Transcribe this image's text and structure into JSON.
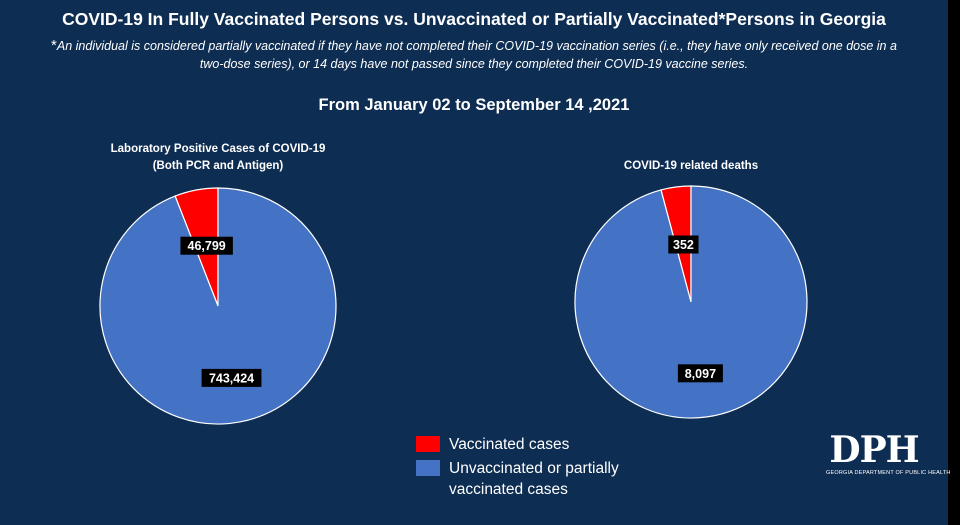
{
  "header": {
    "title": "COVID-19 In Fully Vaccinated Persons vs. Unvaccinated or Partially Vaccinated*Persons in Georgia",
    "note_marker": "*",
    "note": "An individual is considered partially vaccinated if they have not completed their COVID-19 vaccination series (i.e., they have only received one dose in a two-dose series), or 14 days have not passed since they completed their COVID-19 vaccine series.",
    "date_range": "From January 02 to September 14 ,2021"
  },
  "chart_data": [
    {
      "type": "pie",
      "title_lines": [
        "Laboratory Positive Cases of COVID-19",
        "(Both PCR and Antigen)"
      ],
      "slices": [
        {
          "label": "Vaccinated cases",
          "value": 46799,
          "display": "46,799",
          "color": "#ff0000"
        },
        {
          "label": "Unvaccinated or partially vaccinated cases",
          "value": 743424,
          "display": "743,424",
          "color": "#4472c4"
        }
      ]
    },
    {
      "type": "pie",
      "title_lines": [
        "COVID-19 related deaths"
      ],
      "slices": [
        {
          "label": "Vaccinated cases",
          "value": 352,
          "display": "352",
          "color": "#ff0000"
        },
        {
          "label": "Unvaccinated or partially vaccinated cases",
          "value": 8097,
          "display": "8,097",
          "color": "#4472c4"
        }
      ]
    }
  ],
  "legend": {
    "items": [
      {
        "label": "Vaccinated cases",
        "color": "#ff0000"
      },
      {
        "label": "Unvaccinated or partially vaccinated cases",
        "color": "#4472c4"
      }
    ]
  },
  "logo": {
    "letters": "DPH",
    "caption": "GEORGIA DEPARTMENT OF PUBLIC HEALTH"
  }
}
